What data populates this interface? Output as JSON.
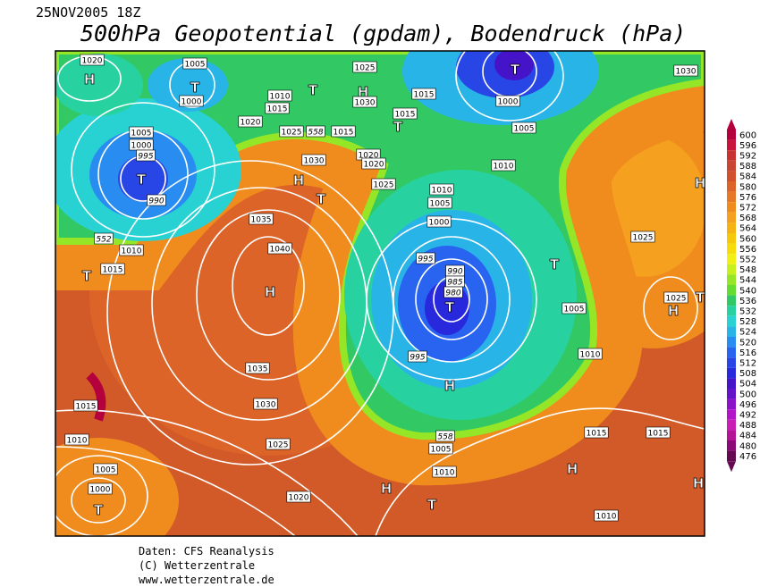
{
  "header": {
    "date": "25NOV2005 18Z",
    "title": "500hPa Geopotential (gpdam), Bodendruck (hPa)"
  },
  "colorbar": {
    "values": [
      600,
      596,
      592,
      588,
      584,
      580,
      576,
      572,
      568,
      564,
      560,
      556,
      552,
      548,
      544,
      540,
      536,
      532,
      528,
      524,
      520,
      516,
      512,
      508,
      504,
      500,
      496,
      492,
      488,
      484,
      480,
      476
    ],
    "colors": [
      "#b4003c",
      "#c8143c",
      "#c83232",
      "#c84632",
      "#d2502d",
      "#dc6428",
      "#e67828",
      "#f08c1e",
      "#f5a01e",
      "#f5b414",
      "#f5c80a",
      "#f5dc0a",
      "#f0f014",
      "#c8f01e",
      "#96e628",
      "#64dc32",
      "#32c864",
      "#28d2a0",
      "#28d2d2",
      "#28b4e6",
      "#288cf0",
      "#2864f0",
      "#2846e6",
      "#2828dc",
      "#4614c8",
      "#6414c8",
      "#8c14c8",
      "#b414c8",
      "#c81eb4",
      "#b41496",
      "#8c0a78",
      "#640a50"
    ]
  },
  "map": {
    "labels": [
      "1020",
      "H",
      "1005",
      "T",
      "1000",
      "1010",
      "1015",
      "1020",
      "1025",
      "558",
      "1015",
      "T",
      "H",
      "1025",
      "1030",
      "1015",
      "1015",
      "T",
      "T",
      "1000",
      "1005",
      "1030",
      "1005",
      "1000",
      "995",
      "T",
      "990",
      "1030",
      "1020",
      "1020",
      "H",
      "T",
      "1025",
      "1010",
      "1010",
      "1005",
      "1000",
      "1035",
      "1040",
      "H",
      "552",
      "1010",
      "1015",
      "T",
      "995",
      "990",
      "985",
      "980",
      "T",
      "T",
      "1005",
      "1025",
      "1025",
      "H",
      "1010",
      "995",
      "H",
      "1035",
      "1030",
      "1025",
      "1015",
      "1010",
      "558",
      "1005",
      "1010",
      "1015",
      "1015",
      "H",
      "H",
      "T",
      "1020",
      "1005",
      "1000",
      "T",
      "1010",
      "H",
      "T",
      "H"
    ]
  },
  "footer": {
    "lines": [
      "Daten: CFS Reanalysis",
      "(C) Wetterzentrale",
      "www.wetterzentrale.de"
    ]
  }
}
